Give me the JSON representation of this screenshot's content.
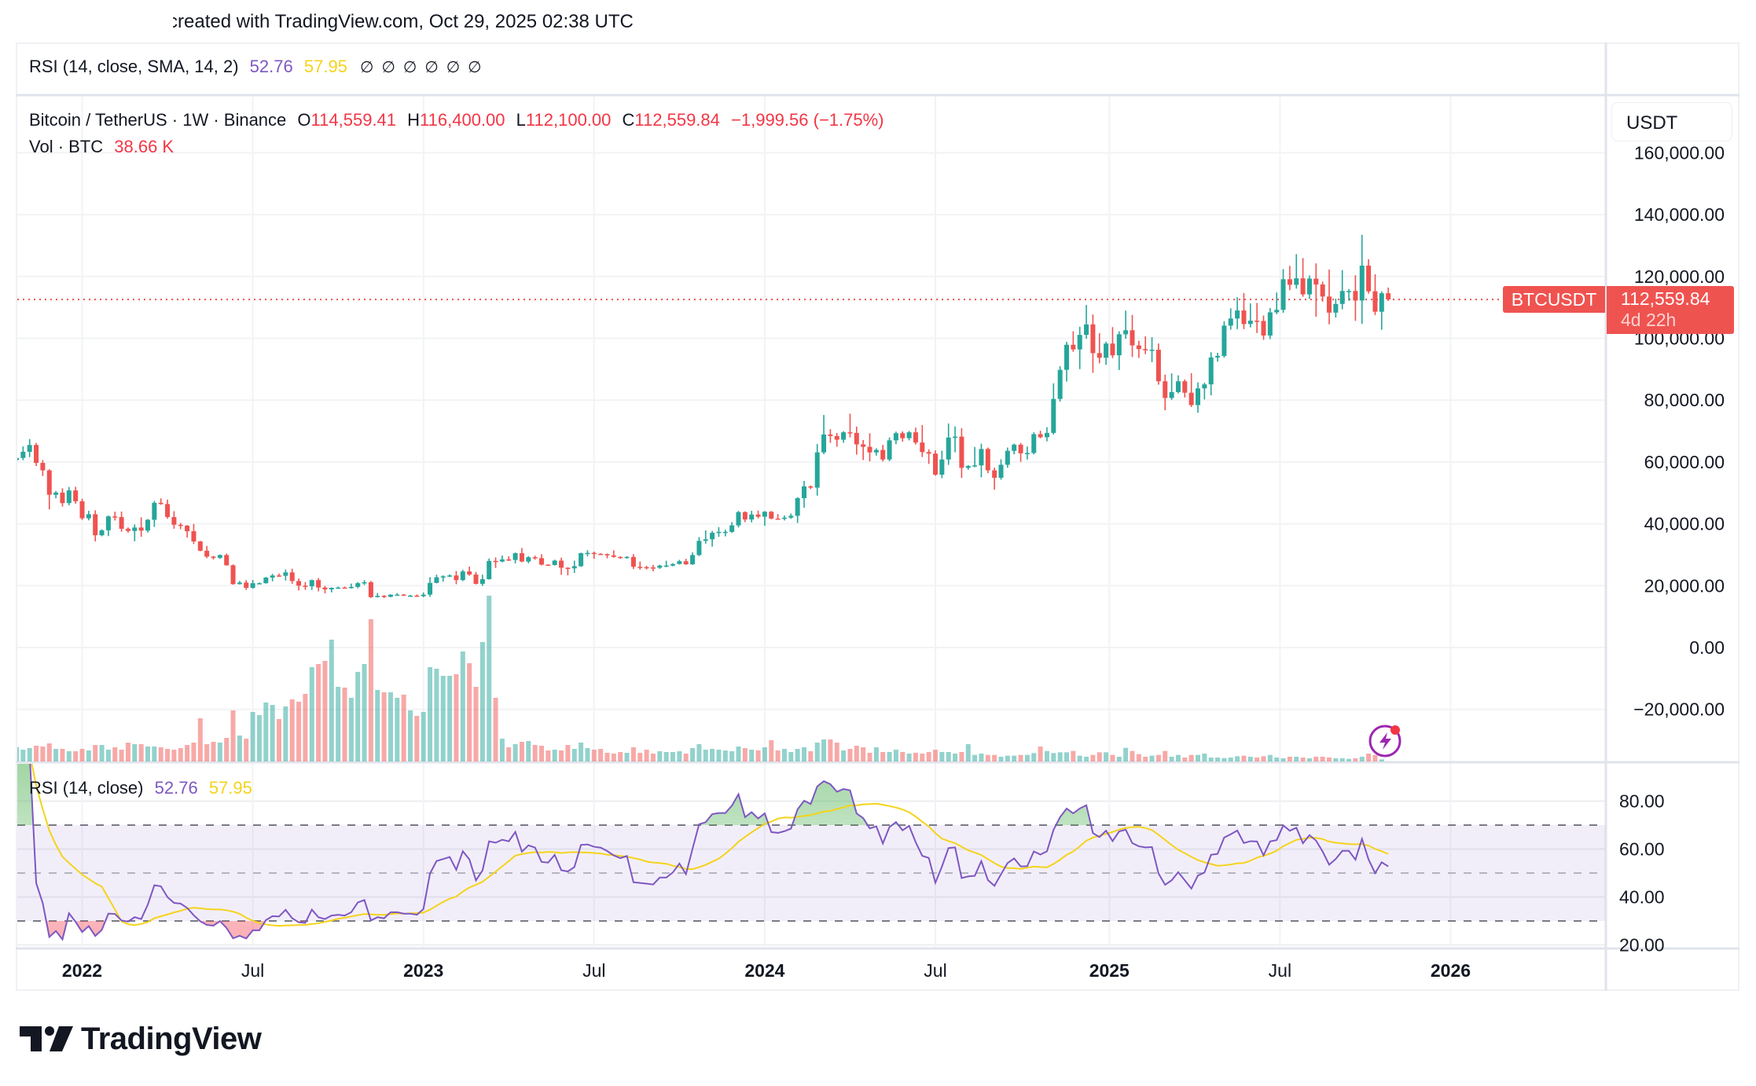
{
  "credit": "created with TradingView.com, Oct 29, 2025 02:38 UTC",
  "rsi_header": {
    "label": "RSI (14, close, SMA, 14, 2)",
    "rsi": "52.76",
    "ma": "57.95",
    "extra": [
      "∅",
      "∅",
      "∅",
      "∅",
      "∅",
      "∅"
    ]
  },
  "legend": {
    "symbol": "Bitcoin / TetherUS · 1W · Binance",
    "o_label": "O",
    "open": "114,559.41",
    "h_label": "H",
    "high": "116,400.00",
    "l_label": "L",
    "low": "112,100.00",
    "c_label": "C",
    "close": "112,559.84",
    "change": "−1,999.56 (−1.75%)",
    "vol_label": "Vol · BTC",
    "vol": "38.66 K"
  },
  "rsi_pane_legend": {
    "label": "RSI (14, close)",
    "rsi": "52.76",
    "ma": "57.95"
  },
  "price_scale": {
    "currency": "USDT",
    "symbol_tag": "BTCUSDT",
    "last_price": "112,559.84",
    "countdown": "4d 22h"
  },
  "brand": "TradingView",
  "colors": {
    "up": "#26a69a",
    "down": "#ef5350",
    "rsi": "#7e57c2",
    "rsi_ma": "#f5d31b",
    "accent": "#f23645"
  },
  "chart_data": {
    "type": "candlestick",
    "title": "Bitcoin / TetherUS · 1W · Binance",
    "interval": "1W",
    "first_week": "2021-10-25",
    "first_open": 60600,
    "last_candle": {
      "open": 114559.41,
      "high": 116400.0,
      "low": 112100.0,
      "close": 112559.84
    },
    "closes": [
      61300,
      63300,
      65500,
      59700,
      57300,
      49400,
      50100,
      46700,
      50800,
      47300,
      41800,
      43100,
      36300,
      37900,
      42400,
      42200,
      38400,
      37700,
      38800,
      37800,
      41300,
      46800,
      46400,
      42200,
      39700,
      39400,
      37600,
      34300,
      31300,
      29400,
      29000,
      29900,
      26600,
      20500,
      21000,
      19300,
      20800,
      20800,
      22600,
      23300,
      23200,
      24300,
      21500,
      20000,
      19800,
      21800,
      19400,
      18800,
      19300,
      19400,
      19200,
      19600,
      20800,
      21100,
      16300,
      16700,
      16400,
      17100,
      17100,
      16800,
      16800,
      16600,
      17100,
      20900,
      22700,
      23000,
      23300,
      21800,
      24600,
      23600,
      20600,
      22100,
      28000,
      27800,
      28500,
      28300,
      30500,
      27800,
      29200,
      28900,
      26800,
      26700,
      28100,
      25800,
      25600,
      26300,
      30500,
      30600,
      30300,
      30200,
      29800,
      29300,
      29000,
      29300,
      26100,
      26000,
      25900,
      25800,
      26500,
      26500,
      27000,
      27900,
      26900,
      29900,
      34500,
      35000,
      37100,
      37400,
      37400,
      39500,
      43800,
      41400,
      43000,
      42300,
      43900,
      41700,
      41600,
      42000,
      42600,
      48300,
      52100,
      51700,
      63100,
      68900,
      68400,
      67200,
      69600,
      69400,
      65700,
      64900,
      63100,
      63900,
      60800,
      67000,
      69300,
      67700,
      69600,
      66300,
      63200,
      62700,
      55900,
      60800,
      67900,
      68200,
      58100,
      58700,
      58900,
      64200,
      57300,
      54900,
      59100,
      63600,
      65600,
      62800,
      62900,
      69000,
      68000,
      69400,
      80400,
      89800,
      97900,
      96400,
      101100,
      104500,
      95200,
      93700,
      98300,
      94500,
      101300,
      102600,
      97700,
      96500,
      96100,
      96300,
      86100,
      80700,
      82600,
      86100,
      82400,
      78400,
      83800,
      85100,
      93800,
      94300,
      104100,
      106400,
      109000,
      104600,
      105700,
      105600,
      100900,
      108400,
      109200,
      119100,
      117300,
      119400,
      114200,
      119300,
      117400,
      113500,
      108300,
      111100,
      115300,
      115300,
      112200,
      123500,
      115200,
      108600,
      114559.41,
      112559.84
    ],
    "volume_k": [
      275,
      225,
      255,
      300,
      285,
      345,
      240,
      240,
      195,
      195,
      240,
      210,
      315,
      315,
      225,
      270,
      225,
      360,
      330,
      330,
      285,
      285,
      270,
      240,
      225,
      255,
      315,
      360,
      825,
      330,
      375,
      360,
      450,
      975,
      495,
      435,
      945,
      885,
      1125,
      1080,
      810,
      1050,
      1185,
      1140,
      1290,
      1800,
      1860,
      1920,
      2325,
      1425,
      1410,
      1215,
      1710,
      1860,
      2715,
      1365,
      1320,
      1320,
      1215,
      1275,
      975,
      870,
      945,
      1800,
      1770,
      1635,
      1635,
      1665,
      2100,
      1875,
      1425,
      2280,
      3165,
      1215,
      435,
      270,
      330,
      375,
      390,
      315,
      300,
      210,
      225,
      210,
      315,
      240,
      360,
      255,
      225,
      240,
      165,
      150,
      180,
      165,
      270,
      165,
      225,
      150,
      195,
      180,
      180,
      195,
      150,
      255,
      330,
      225,
      240,
      225,
      210,
      195,
      285,
      255,
      225,
      210,
      270,
      405,
      210,
      240,
      180,
      240,
      270,
      195,
      360,
      420,
      420,
      360,
      210,
      240,
      300,
      270,
      165,
      270,
      180,
      180,
      225,
      180,
      150,
      165,
      150,
      180,
      225,
      180,
      180,
      150,
      180,
      330,
      125,
      150,
      125,
      125,
      90,
      110,
      110,
      125,
      125,
      160,
      285,
      200,
      160,
      175,
      175,
      200,
      110,
      90,
      125,
      175,
      175,
      125,
      90,
      260,
      200,
      140,
      90,
      110,
      125,
      200,
      90,
      125,
      75,
      125,
      125,
      150,
      75,
      75,
      65,
      75,
      100,
      110,
      90,
      75,
      100,
      125,
      75,
      60,
      90,
      90,
      75,
      60,
      90,
      90,
      75,
      60,
      60,
      50,
      60,
      90,
      150,
      125,
      38.66
    ],
    "y_axis": {
      "ticks": [
        160000,
        140000,
        120000,
        100000,
        80000,
        60000,
        40000,
        20000,
        0,
        -20000
      ],
      "labels": [
        "160,000.00",
        "140,000.00",
        "120,000.00",
        "100,000.00",
        "80,000.00",
        "60,000.00",
        "40,000.00",
        "20,000.00",
        "0.00",
        "−20,000.00"
      ]
    },
    "x_axis": {
      "ticks": [
        {
          "label": "2022",
          "week": 10,
          "major": true
        },
        {
          "label": "Jul",
          "week": 36,
          "major": false
        },
        {
          "label": "2023",
          "week": 62,
          "major": true
        },
        {
          "label": "Jul",
          "week": 88,
          "major": false
        },
        {
          "label": "2024",
          "week": 114,
          "major": true
        },
        {
          "label": "Jul",
          "week": 140,
          "major": false
        },
        {
          "label": "2025",
          "week": 166.5,
          "major": true
        },
        {
          "label": "Jul",
          "week": 192.5,
          "major": false
        },
        {
          "label": "2026",
          "week": 218.5,
          "major": true
        }
      ]
    },
    "rsi": {
      "period": 14,
      "ma_period": 14,
      "upper": 70,
      "middle": 50,
      "lower": 30,
      "ticks": [
        80,
        60,
        40,
        20
      ],
      "labels": [
        "80.00",
        "60.00",
        "40.00",
        "20.00"
      ],
      "ylim": [
        18,
        93
      ]
    }
  }
}
